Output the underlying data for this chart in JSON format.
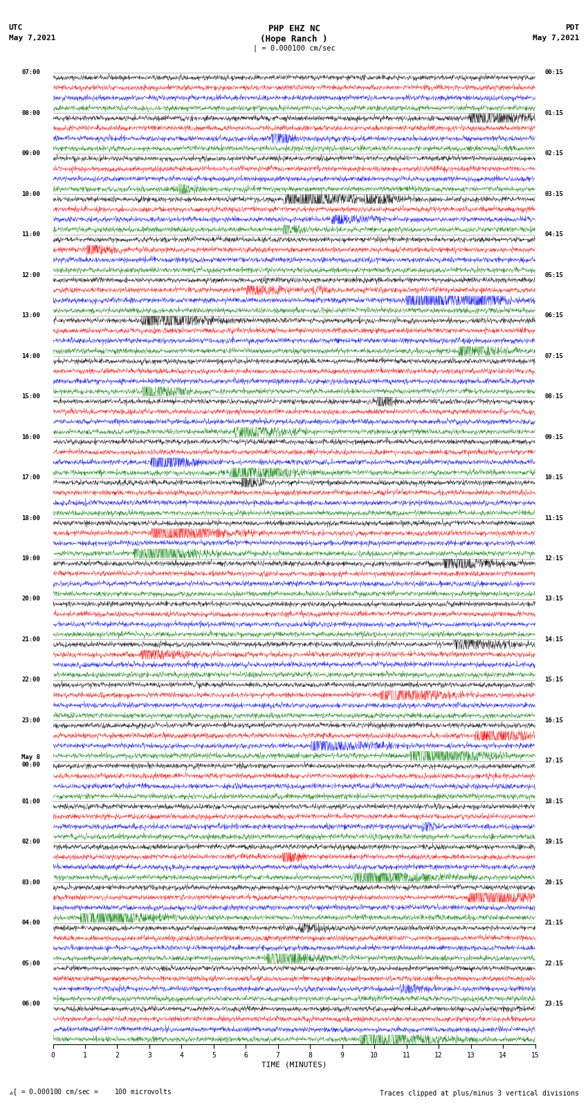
{
  "title_line1": "PHP EHZ NC",
  "title_line2": "(Hope Ranch )",
  "title_line3": "| = 0.000100 cm/sec",
  "label_utc": "UTC",
  "label_pdt": "PDT",
  "date_left": "May 7,2021",
  "date_right": "May 7,2021",
  "xlabel": "TIME (MINUTES)",
  "footer_left": "= 0.000100 cm/sec =    100 microvolts",
  "footer_right": "Traces clipped at plus/minus 3 vertical divisions",
  "time_labels_left": [
    "07:00",
    "08:00",
    "09:00",
    "10:00",
    "11:00",
    "12:00",
    "13:00",
    "14:00",
    "15:00",
    "16:00",
    "17:00",
    "18:00",
    "19:00",
    "20:00",
    "21:00",
    "22:00",
    "23:00",
    "May 8\n00:00",
    "01:00",
    "02:00",
    "03:00",
    "04:00",
    "05:00",
    "06:00"
  ],
  "time_labels_right": [
    "00:15",
    "01:15",
    "02:15",
    "03:15",
    "04:15",
    "05:15",
    "06:15",
    "07:15",
    "08:15",
    "09:15",
    "10:15",
    "11:15",
    "12:15",
    "13:15",
    "14:15",
    "15:15",
    "16:15",
    "17:15",
    "18:15",
    "19:15",
    "20:15",
    "21:15",
    "22:15",
    "23:15"
  ],
  "num_rows": 24,
  "traces_per_row": 4,
  "trace_colors": [
    "black",
    "red",
    "blue",
    "green"
  ],
  "bg_color": "white",
  "xlim": [
    0,
    15
  ],
  "xticks": [
    0,
    1,
    2,
    3,
    4,
    5,
    6,
    7,
    8,
    9,
    10,
    11,
    12,
    13,
    14,
    15
  ],
  "noise_amplitude": 0.13,
  "seed": 42
}
